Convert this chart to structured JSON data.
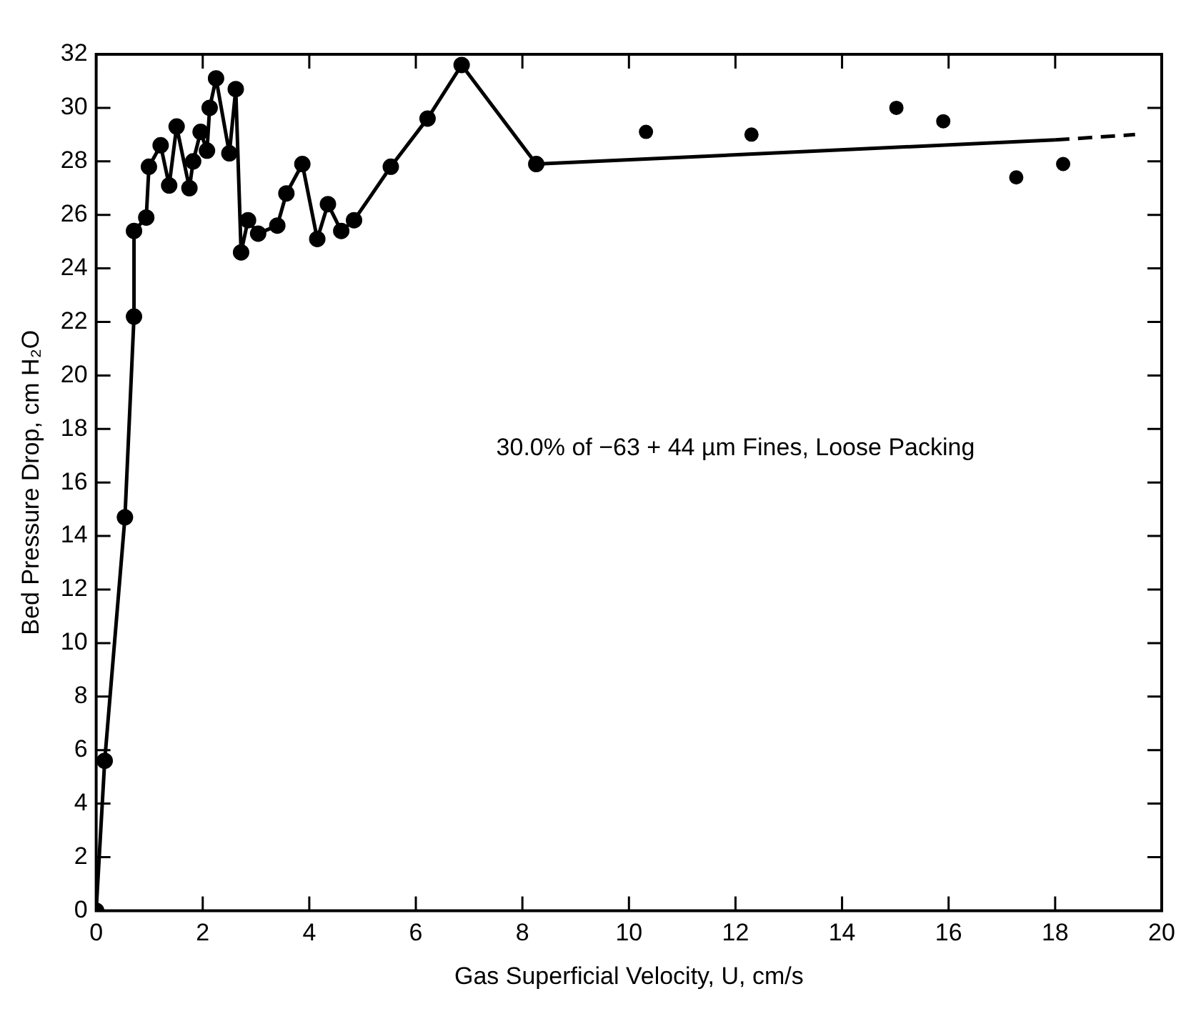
{
  "chart_data": {
    "type": "line",
    "xlabel": "Gas Superficial Velocity, U, cm/s",
    "ylabel": "Bed Pressure Drop, cm H₂O",
    "annotations": [
      "30.0% of −63 + 44 µm Fines, Loose Packing"
    ],
    "xlim": [
      0,
      20
    ],
    "xticks": [
      0,
      2,
      4,
      6,
      8,
      10,
      12,
      14,
      16,
      18,
      20
    ],
    "ylim": [
      0,
      32
    ],
    "yticks": [
      0,
      2,
      4,
      6,
      8,
      10,
      12,
      14,
      16,
      18,
      20,
      22,
      24,
      26,
      28,
      30,
      32
    ],
    "grid": false,
    "legend": false,
    "series": [
      {
        "marker": "circle",
        "line_style": "solid",
        "color": "#000000",
        "x": [
          0,
          0.16,
          0.54,
          0.71,
          0.71,
          0.94,
          0.99,
          1.21,
          1.37,
          1.51,
          1.75,
          1.82,
          1.96,
          2.08,
          2.13,
          2.25,
          2.5,
          2.62,
          2.72,
          2.85,
          3.04,
          3.4,
          3.57,
          3.87,
          4.15,
          4.35,
          4.6,
          4.84,
          5.53,
          6.22,
          6.86,
          8.26
        ],
        "values": [
          0,
          5.6,
          14.7,
          22.2,
          25.4,
          25.9,
          27.8,
          28.6,
          27.1,
          29.3,
          27.0,
          28.0,
          29.1,
          28.4,
          30.0,
          31.1,
          28.3,
          30.7,
          24.6,
          25.8,
          25.3,
          25.6,
          26.8,
          27.9,
          25.1,
          26.4,
          25.4,
          25.8,
          27.8,
          29.6,
          31.6,
          27.9
        ]
      },
      {
        "marker": "none",
        "line_style": "solid",
        "color": "#000000",
        "x": [
          8.26,
          18
        ],
        "values": [
          27.9,
          28.8
        ]
      },
      {
        "marker": "none",
        "line_style": "dashed",
        "color": "#000000",
        "x": [
          18,
          19.5
        ],
        "values": [
          28.8,
          29.0
        ]
      },
      {
        "type": "scatter",
        "marker": "circle",
        "color": "#000000",
        "x": [
          10.32,
          12.3,
          15.02,
          15.9,
          17.27,
          18.15
        ],
        "values": [
          29.1,
          29.0,
          30.0,
          29.5,
          27.4,
          27.9
        ]
      }
    ]
  }
}
